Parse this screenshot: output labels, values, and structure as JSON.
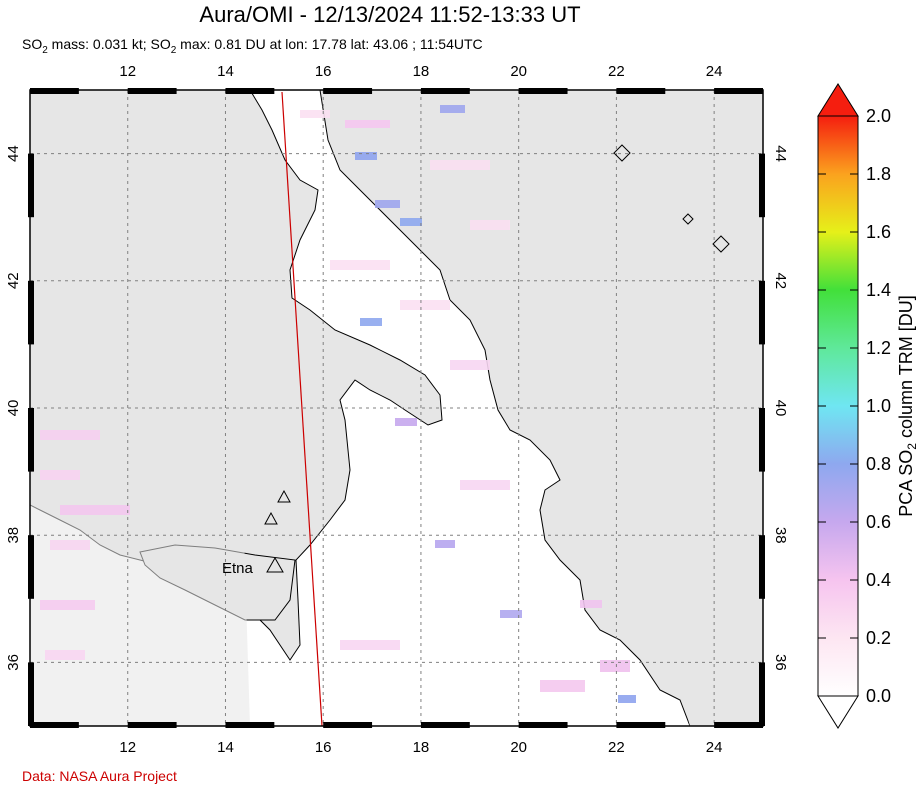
{
  "header": {
    "title": "Aura/OMI - 12/13/2024 11:52-13:33 UT",
    "subtitle_prefix": "SO",
    "subtitle_mid1": " mass: 0.031 kt; SO",
    "subtitle_rest": " max: 0.81 DU at lon: 17.78 lat: 43.06 ; 11:54UTC",
    "subscript": "2"
  },
  "footer": {
    "credit": "Data: NASA Aura Project"
  },
  "map": {
    "lon_range": [
      10,
      25
    ],
    "lat_range": [
      35,
      45
    ],
    "lon_ticks": [
      "12",
      "14",
      "16",
      "18",
      "20",
      "22",
      "24"
    ],
    "lat_ticks": [
      "36",
      "38",
      "40",
      "42",
      "44"
    ],
    "volcano_label": "Etna",
    "colors": {
      "land": "#e6e6e6",
      "sea": "#ffffff",
      "coast": "#000000",
      "track": "#cc0000",
      "grid": "#808080"
    }
  },
  "colorbar": {
    "ticks": [
      "0.0",
      "0.2",
      "0.4",
      "0.6",
      "0.8",
      "1.0",
      "1.2",
      "1.4",
      "1.6",
      "1.8",
      "2.0"
    ],
    "title_pre": "PCA SO",
    "title_sub": "2",
    "title_post": " column TRM [DU]",
    "range": [
      0.0,
      2.0
    ]
  }
}
